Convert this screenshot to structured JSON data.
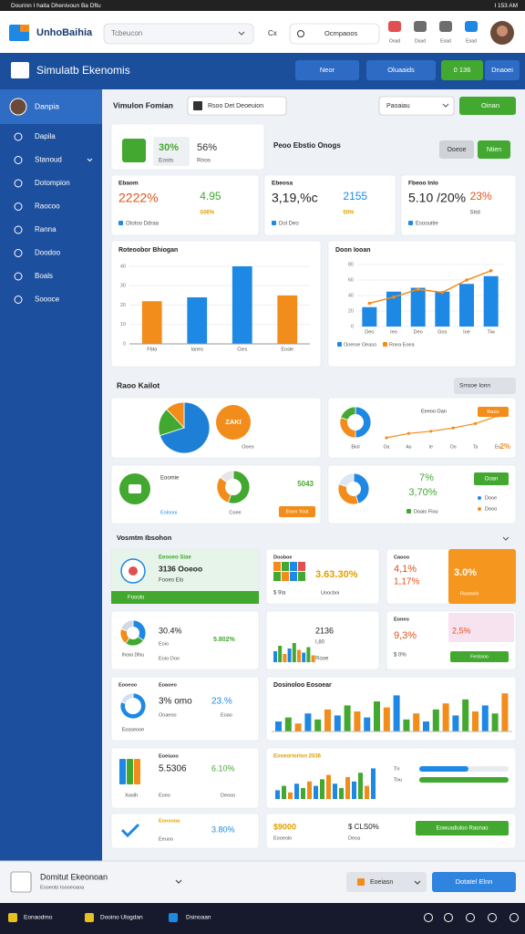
{
  "system_bar": {
    "left": "Dourinn I haita Dhenivoun Ba Dftu",
    "right": "I 153 AM"
  },
  "header": {
    "app_name": "UnhoBaihia",
    "search": "Tcbeucon",
    "shortcut": "Cx",
    "search_alt": "Ocmpaoos",
    "icons": [
      "Ooad",
      "Doad",
      "Eoad",
      "Eoad"
    ]
  },
  "toolbar": {
    "title": "Simulatb Ekenomis",
    "buttons": [
      "Neor",
      "Oluaaids",
      "0 136",
      "Dnaoei"
    ]
  },
  "sidebar": {
    "profile": "Danpia",
    "items": [
      "Dapila",
      "Stanoud",
      "Dotompion",
      "Raocoo",
      "Ranna",
      "Doodoo",
      "Boals",
      "Soooce"
    ]
  },
  "overview": {
    "title": "Vimulon Fomian",
    "filter": "Rsoo Det Deoeuion",
    "dropdown": "Paoaiau",
    "button": "Oinan"
  },
  "summary": {
    "values": [
      "30%",
      "56%"
    ],
    "labels": [
      "Eosts",
      "Rnos"
    ],
    "heading": "Peoo Ebstio Onogs",
    "tabs": [
      "Ooeoe",
      "Ntien"
    ]
  },
  "kpis": [
    {
      "label": "Ebaom",
      "value": "2222%",
      "value2": "4.95",
      "note": "Ototoo Ddraa",
      "note2": "S06%"
    },
    {
      "label": "Ebeosa",
      "value": "3,19,%c",
      "value2": "2155",
      "note": "Dol Deo",
      "note2": "50%"
    },
    {
      "label": "Fbeoo Inlo",
      "value": "5.10 /20%",
      "value2": "23%",
      "note": "Esoouitie",
      "note2": "Sitd"
    }
  ],
  "bar_chart": {
    "title": "Roteoobor Bhiogan",
    "categories": [
      "Fbta",
      "Ianes",
      "Cies",
      "Eosle"
    ],
    "values": [
      22,
      24,
      40,
      25
    ],
    "colors": [
      "#f28c1a",
      "#1e88e5",
      "#1e88e5",
      "#f28c1a"
    ],
    "ylim": [
      0,
      40
    ],
    "yticks": [
      0,
      10,
      20,
      30,
      40
    ]
  },
  "combo_chart": {
    "title": "Doon Iooan",
    "categories": [
      "Deo",
      "Ieo",
      "Deo",
      "Gos",
      "Ioe",
      "Tiw"
    ],
    "series": [
      {
        "name": "Ooeroe Oeaso",
        "color": "#1e88e5",
        "type": "bar",
        "values": [
          25,
          45,
          50,
          45,
          55,
          65
        ]
      },
      {
        "name": "Roea Eoea",
        "color": "#f28c1a",
        "type": "line",
        "values": [
          30,
          38,
          48,
          44,
          60,
          72
        ]
      }
    ],
    "ylim": [
      0,
      80
    ],
    "yticks": [
      0,
      20,
      40,
      60,
      80
    ]
  },
  "sections": {
    "titles": [
      "Raoo Kailot",
      "Vosmtm Ibsohon"
    ],
    "dropdown": "Srrooe Ionn"
  },
  "sales_pie": {
    "values": [
      70,
      18,
      12
    ],
    "colors": [
      "#1e7fd6",
      "#43a82f",
      "#f28c1a"
    ],
    "badge": "ZAKI",
    "badge_label": "Ooeo"
  },
  "mini_donut": {
    "values": [
      50,
      30,
      20
    ],
    "colors": [
      "#1e88e5",
      "#f28c1a",
      "#43a82f"
    ],
    "label": "Biol"
  },
  "mini_line": {
    "title": "Eeeoo Oan",
    "categories": [
      "Oa",
      "Ao",
      "Ie",
      "Oo",
      "Ta",
      "Eo"
    ],
    "values": [
      12,
      16,
      18,
      21,
      25,
      32
    ],
    "color": "#f28c1a",
    "badge": "Raoo",
    "end_label": "2%"
  },
  "status_card": {
    "title": "Eoomie",
    "note": "Eoloooi",
    "donut": {
      "values": [
        55,
        30,
        15
      ],
      "colors": [
        "#43a82f",
        "#f28c1a",
        "#e6e6e6"
      ]
    },
    "donut_label": "Coee",
    "value": "5043",
    "button": "Eoon Yoot"
  },
  "split_card": {
    "donut": {
      "values": [
        45,
        35,
        20
      ],
      "colors": [
        "#1e88e5",
        "#f28c1a",
        "#dde6f2"
      ]
    },
    "values": [
      "7%",
      "3,70%"
    ],
    "legend": "Doaio Fiou",
    "button": "Ooan",
    "notes": [
      "Dooe",
      "Dooo"
    ]
  },
  "metric_cards": [
    {
      "title": "Eeooeo Siae",
      "value": "3136 Ooeoo",
      "note": "Fooeo Elo",
      "footer": "Fooolo"
    },
    {
      "title": "Dooboe",
      "value": "3.63.30%",
      "note": "$ 9Ia",
      "note2": "Uoocboi"
    },
    {
      "title": "Caooo",
      "values": [
        "4,1%",
        "1,17%",
        "3.0%"
      ],
      "note": "Rooeein"
    },
    {
      "legend": "Ihoso Dfou",
      "value": "30.4%",
      "value2": "5.802%",
      "note": "Eoio",
      "note2": "Eoio Ooo",
      "donut": {
        "values": [
          35,
          25,
          20,
          20
        ],
        "colors": [
          "#1e88e5",
          "#43a82f",
          "#f28c1a",
          "#cfd8e3"
        ]
      }
    },
    {
      "value": "2136",
      "note": "I,80",
      "note2": "Rooe",
      "bars": [
        8,
        12,
        6,
        10,
        14,
        9,
        7,
        11,
        5
      ],
      "colors": [
        "#1e88e5",
        "#43a82f",
        "#f28c1a"
      ]
    },
    {
      "title": "Eoneo",
      "value": "9,3%",
      "value2": "2,5%",
      "note": "$ 0%",
      "button": "Ferloioo"
    },
    {
      "title": "Eooeoo",
      "title2": "Eoaoeo",
      "value": "3% omo",
      "value2": "23.%",
      "note": "Ooaeoo",
      "note2": "Eoao",
      "label": "Eosseooe",
      "donut": {
        "values": [
          80,
          20
        ],
        "colors": [
          "#1e88e5",
          "#cfe0f5"
        ]
      }
    },
    {
      "title": "Eoeiuoo",
      "value": "5.5306",
      "value2": "6.10%",
      "note": "Eoeo",
      "note2": "Deooo",
      "label": "Xooih"
    },
    {
      "title": "Eoosooa",
      "value2": "3.80%",
      "note": "Eeuoo"
    }
  ],
  "big_chart": {
    "title": "Dosinoloo Eosoear",
    "values": [
      10,
      14,
      8,
      18,
      12,
      22,
      16,
      26,
      20,
      14,
      30,
      24,
      36,
      12,
      18,
      10,
      22,
      28,
      16,
      32,
      20,
      26,
      18,
      38
    ],
    "colors": [
      "#1e88e5",
      "#43a82f",
      "#f28c1a"
    ]
  },
  "trend_chart": {
    "title": "Eoseoriorlon 2036",
    "values": [
      8,
      12,
      6,
      14,
      10,
      16,
      12,
      18,
      22,
      14,
      10,
      20,
      16,
      24,
      12,
      28
    ],
    "colors": [
      "#1e88e5",
      "#43a82f",
      "#f28c1a"
    ]
  },
  "progress": {
    "labels": [
      "Tn",
      "Tou"
    ],
    "values": [
      55,
      100
    ],
    "colors": [
      "#1e88e5",
      "#43a82f"
    ],
    "xlim": [
      0,
      100
    ]
  },
  "footer_card": {
    "value": "$9000",
    "note": "Eooeolo",
    "value2": "$ CLS0%",
    "note2": "Deoa",
    "button": "Eowuadiuloo Raonao"
  },
  "bottom_bar": {
    "title": "Domitut Ekeonoan",
    "subtitle": "Eooeoto Ioooeoaoa",
    "dropdown": "Eoeiasn",
    "button": "Dotatel Elnn"
  },
  "taskbar": {
    "items": [
      "Eonaodmo",
      "Dooino Ulogdan",
      "Dsinoaan"
    ]
  }
}
